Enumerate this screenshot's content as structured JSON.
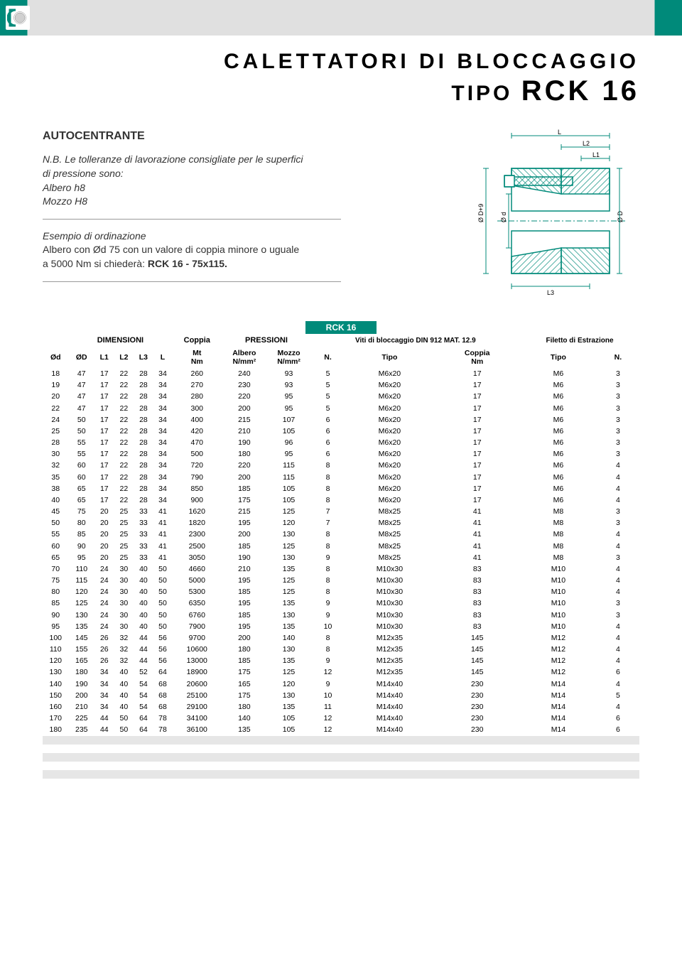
{
  "header": {
    "brand_color": "#008a7a"
  },
  "title": {
    "line1": "CALETTATORI DI BLOCCAGGIO",
    "line2_prefix": "TIPO",
    "line2_model": "RCK 16"
  },
  "info": {
    "subtitle": "AUTOCENTRANTE",
    "nb_line1": "N.B. Le tolleranze di lavorazione consigliate per le superfici",
    "nb_line2": "di pressione sono:",
    "nb_line3": "Albero h8",
    "nb_line4": "Mozzo H8",
    "esempio_title": "Esempio di ordinazione",
    "esempio_line1": "Albero con Ød 75 con un valore di coppia minore o uguale",
    "esempio_line2": "a 5000 Nm si chiederà: RCK 16 - 75x115."
  },
  "diagram": {
    "labels": {
      "L": "L",
      "L1": "L1",
      "L2": "L2",
      "L3": "L3",
      "Dd9": "Ø D+9",
      "d": "Ø d",
      "D": "Ø D"
    },
    "stroke": "#008a7a",
    "hatch": "#008a7a",
    "background": "#ffffff"
  },
  "table": {
    "title": "RCK 16",
    "groups": {
      "dimensioni": "DIMENSIONI",
      "coppia": "Coppia",
      "pressioni": "PRESSIONI",
      "viti": "Viti di bloccaggio DIN 912 MAT. 12.9",
      "filetto": "Filetto di Estrazione"
    },
    "cols": {
      "od": "Ød",
      "oD": "ØD",
      "L1": "L1",
      "L2": "L2",
      "L3": "L3",
      "L": "L",
      "Mt": "Mt",
      "Nm": "Nm",
      "albero": "Albero",
      "mozzo": "Mozzo",
      "nmm2": "N/mm²",
      "N": "N.",
      "tipo": "Tipo",
      "coppia": "Coppia",
      "coppia_nm": "Nm",
      "tipo2": "Tipo",
      "N2": "N."
    },
    "rows": [
      [
        18,
        47,
        17,
        22,
        28,
        34,
        260,
        240,
        93,
        5,
        "M6x20",
        17,
        "M6",
        3
      ],
      [
        19,
        47,
        17,
        22,
        28,
        34,
        270,
        230,
        93,
        5,
        "M6x20",
        17,
        "M6",
        3
      ],
      [
        20,
        47,
        17,
        22,
        28,
        34,
        280,
        220,
        95,
        5,
        "M6x20",
        17,
        "M6",
        3
      ],
      [
        22,
        47,
        17,
        22,
        28,
        34,
        300,
        200,
        95,
        5,
        "M6x20",
        17,
        "M6",
        3
      ],
      [
        24,
        50,
        17,
        22,
        28,
        34,
        400,
        215,
        107,
        6,
        "M6x20",
        17,
        "M6",
        3
      ],
      [
        25,
        50,
        17,
        22,
        28,
        34,
        420,
        210,
        105,
        6,
        "M6x20",
        17,
        "M6",
        3
      ],
      [
        28,
        55,
        17,
        22,
        28,
        34,
        470,
        190,
        96,
        6,
        "M6x20",
        17,
        "M6",
        3
      ],
      [
        30,
        55,
        17,
        22,
        28,
        34,
        500,
        180,
        95,
        6,
        "M6x20",
        17,
        "M6",
        3
      ],
      [
        32,
        60,
        17,
        22,
        28,
        34,
        720,
        220,
        115,
        8,
        "M6x20",
        17,
        "M6",
        4
      ],
      [
        35,
        60,
        17,
        22,
        28,
        34,
        790,
        200,
        115,
        8,
        "M6x20",
        17,
        "M6",
        4
      ],
      [
        38,
        65,
        17,
        22,
        28,
        34,
        850,
        185,
        105,
        8,
        "M6x20",
        17,
        "M6",
        4
      ],
      [
        40,
        65,
        17,
        22,
        28,
        34,
        900,
        175,
        105,
        8,
        "M6x20",
        17,
        "M6",
        4
      ],
      [
        45,
        75,
        20,
        25,
        33,
        41,
        1620,
        215,
        125,
        7,
        "M8x25",
        41,
        "M8",
        3
      ],
      [
        50,
        80,
        20,
        25,
        33,
        41,
        1820,
        195,
        120,
        7,
        "M8x25",
        41,
        "M8",
        3
      ],
      [
        55,
        85,
        20,
        25,
        33,
        41,
        2300,
        200,
        130,
        8,
        "M8x25",
        41,
        "M8",
        4
      ],
      [
        60,
        90,
        20,
        25,
        33,
        41,
        2500,
        185,
        125,
        8,
        "M8x25",
        41,
        "M8",
        4
      ],
      [
        65,
        95,
        20,
        25,
        33,
        41,
        3050,
        190,
        130,
        9,
        "M8x25",
        41,
        "M8",
        3
      ],
      [
        70,
        110,
        24,
        30,
        40,
        50,
        4660,
        210,
        135,
        8,
        "M10x30",
        83,
        "M10",
        4
      ],
      [
        75,
        115,
        24,
        30,
        40,
        50,
        5000,
        195,
        125,
        8,
        "M10x30",
        83,
        "M10",
        4
      ],
      [
        80,
        120,
        24,
        30,
        40,
        50,
        5300,
        185,
        125,
        8,
        "M10x30",
        83,
        "M10",
        4
      ],
      [
        85,
        125,
        24,
        30,
        40,
        50,
        6350,
        195,
        135,
        9,
        "M10x30",
        83,
        "M10",
        3
      ],
      [
        90,
        130,
        24,
        30,
        40,
        50,
        6760,
        185,
        130,
        9,
        "M10x30",
        83,
        "M10",
        3
      ],
      [
        95,
        135,
        24,
        30,
        40,
        50,
        7900,
        195,
        135,
        10,
        "M10x30",
        83,
        "M10",
        4
      ],
      [
        100,
        145,
        26,
        32,
        44,
        56,
        9700,
        200,
        140,
        8,
        "M12x35",
        145,
        "M12",
        4
      ],
      [
        110,
        155,
        26,
        32,
        44,
        56,
        10600,
        180,
        130,
        8,
        "M12x35",
        145,
        "M12",
        4
      ],
      [
        120,
        165,
        26,
        32,
        44,
        56,
        13000,
        185,
        135,
        9,
        "M12x35",
        145,
        "M12",
        4
      ],
      [
        130,
        180,
        34,
        40,
        52,
        64,
        18900,
        175,
        125,
        12,
        "M12x35",
        145,
        "M12",
        6
      ],
      [
        140,
        190,
        34,
        40,
        54,
        68,
        20600,
        165,
        120,
        9,
        "M14x40",
        230,
        "M14",
        4
      ],
      [
        150,
        200,
        34,
        40,
        54,
        68,
        25100,
        175,
        130,
        10,
        "M14x40",
        230,
        "M14",
        5
      ],
      [
        160,
        210,
        34,
        40,
        54,
        68,
        29100,
        180,
        135,
        11,
        "M14x40",
        230,
        "M14",
        4
      ],
      [
        170,
        225,
        44,
        50,
        64,
        78,
        34100,
        140,
        105,
        12,
        "M14x40",
        230,
        "M14",
        6
      ],
      [
        180,
        235,
        44,
        50,
        64,
        78,
        36100,
        135,
        105,
        12,
        "M14x40",
        230,
        "M14",
        6
      ]
    ],
    "header_bg": "#008a7a",
    "zebra_bg": "#e6e6e6",
    "text_color": "#000000"
  }
}
